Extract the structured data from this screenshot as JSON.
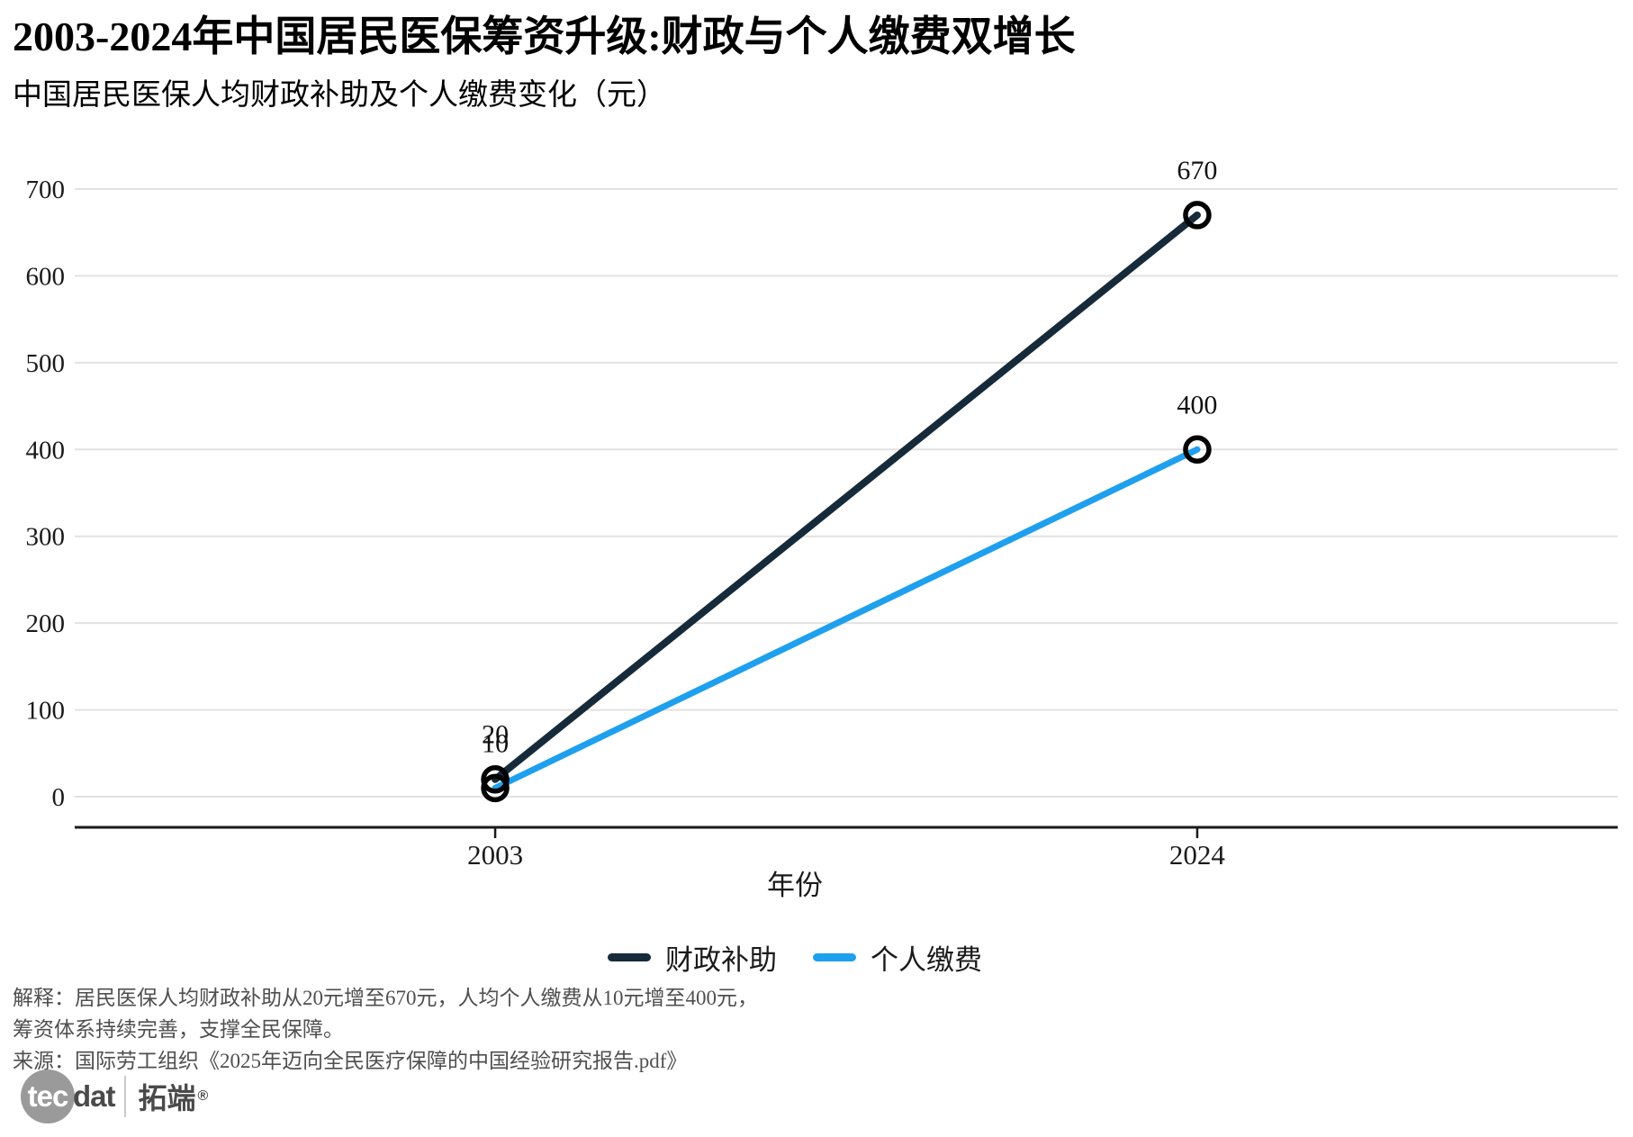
{
  "header": {
    "title": "2003-2024年中国居民医保筹资升级:财政与个人缴费双增长",
    "subtitle": "中国居民医保人均财政补助及个人缴费变化（元）"
  },
  "chart_data": {
    "type": "line",
    "x_labels": [
      "2003",
      "2024"
    ],
    "xlabel": "年份",
    "ylim": [
      0,
      700
    ],
    "ytick_step": 100,
    "grid": "horizontal-major-only",
    "legend_position": "bottom",
    "marker": "open-circle",
    "series": [
      {
        "name": "财政补助",
        "color": "#172A3A",
        "values": [
          20,
          670
        ]
      },
      {
        "name": "个人缴费",
        "color": "#1FA0EE",
        "values": [
          10,
          400
        ]
      }
    ]
  },
  "footer": {
    "explain_line1": "解释：居民医保人均财政补助从20元增至670元，人均个人缴费从10元增至400元，",
    "explain_line2": "筹资体系持续完善，支撑全民保障。",
    "source_line": "来源：国际劳工组织《2025年迈向全民医疗保障的中国经验研究报告.pdf》"
  },
  "logo": {
    "circle_text": "tec",
    "suffix_text": "dat",
    "brand_text": "拓端",
    "registered_mark": "®"
  },
  "colors": {
    "grid": "#E2E2E2",
    "axis": "#1A1A1A",
    "tick_text": "#1A1A1A",
    "label_text": "#111111",
    "marker_stroke": "#000000",
    "footer_text": "#4F4F4F"
  }
}
